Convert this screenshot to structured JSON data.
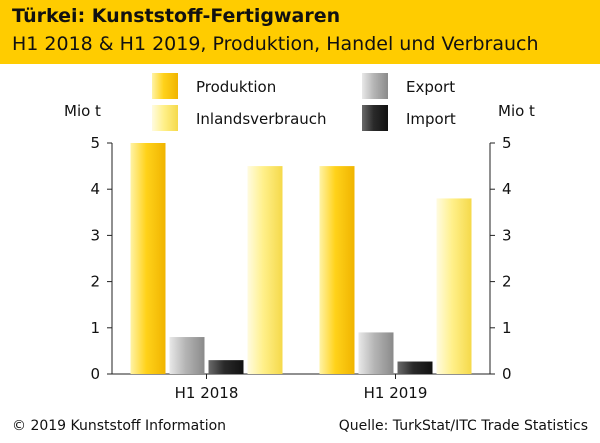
{
  "header": {
    "title": "Türkei: Kunststoff-Fertigwaren",
    "subtitle": "H1 2018 & H1 2019, Produktion, Handel und Verbrauch"
  },
  "footer": {
    "copyright": "© 2019 Kunststoff Information",
    "source": "Quelle: TurkStat/ITC Trade Statistics"
  },
  "colors": {
    "header_bg": "#ffcc00",
    "produktion": "#ffd21a",
    "inlandsverbrauch": "#fff08a",
    "export": "#b5b5b5",
    "import": "#2a2a2a"
  },
  "chart_data": {
    "type": "bar",
    "categories": [
      "H1 2018",
      "H1 2019"
    ],
    "series": [
      {
        "name": "Produktion",
        "values": [
          5.0,
          4.5
        ],
        "color": "#ffd21a"
      },
      {
        "name": "Export",
        "values": [
          0.8,
          0.9
        ],
        "color": "#b5b5b5"
      },
      {
        "name": "Import",
        "values": [
          0.3,
          0.27
        ],
        "color": "#2a2a2a"
      },
      {
        "name": "Inlandsverbrauch",
        "values": [
          4.5,
          3.8
        ],
        "color": "#fff08a"
      }
    ],
    "legend": [
      "Produktion",
      "Export",
      "Inlandsverbrauch",
      "Import"
    ],
    "ylabel_left": "Mio t",
    "ylabel_right": "Mio t",
    "ylim": [
      0,
      5
    ],
    "yticks": [
      0,
      1,
      2,
      3,
      4,
      5
    ],
    "grid": false,
    "legend_position": "top"
  }
}
